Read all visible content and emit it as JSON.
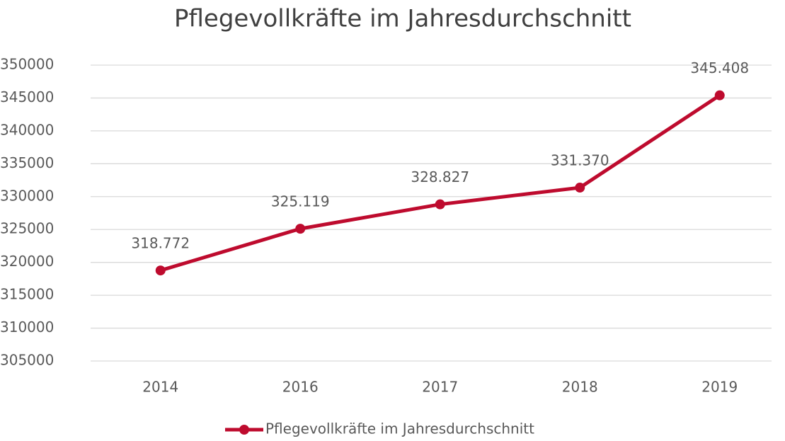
{
  "chart_data": {
    "type": "line",
    "title": "Pflegevollkräfte im Jahresdurchschnitt",
    "categories": [
      "2014",
      "2016",
      "2017",
      "2018",
      "2019"
    ],
    "series": [
      {
        "name": "Pflegevollkräfte im Jahresdurchschnitt",
        "color": "#be0b2e",
        "values": [
          318772,
          325119,
          328827,
          331370,
          345408
        ],
        "value_labels": [
          "318.772",
          "325.119",
          "328.827",
          "331.370",
          "345.408"
        ]
      }
    ],
    "ylim": [
      305000,
      350000
    ],
    "yticks": [
      305000,
      310000,
      315000,
      320000,
      325000,
      330000,
      335000,
      340000,
      345000,
      350000
    ],
    "grid": true,
    "legend": "bottom"
  }
}
